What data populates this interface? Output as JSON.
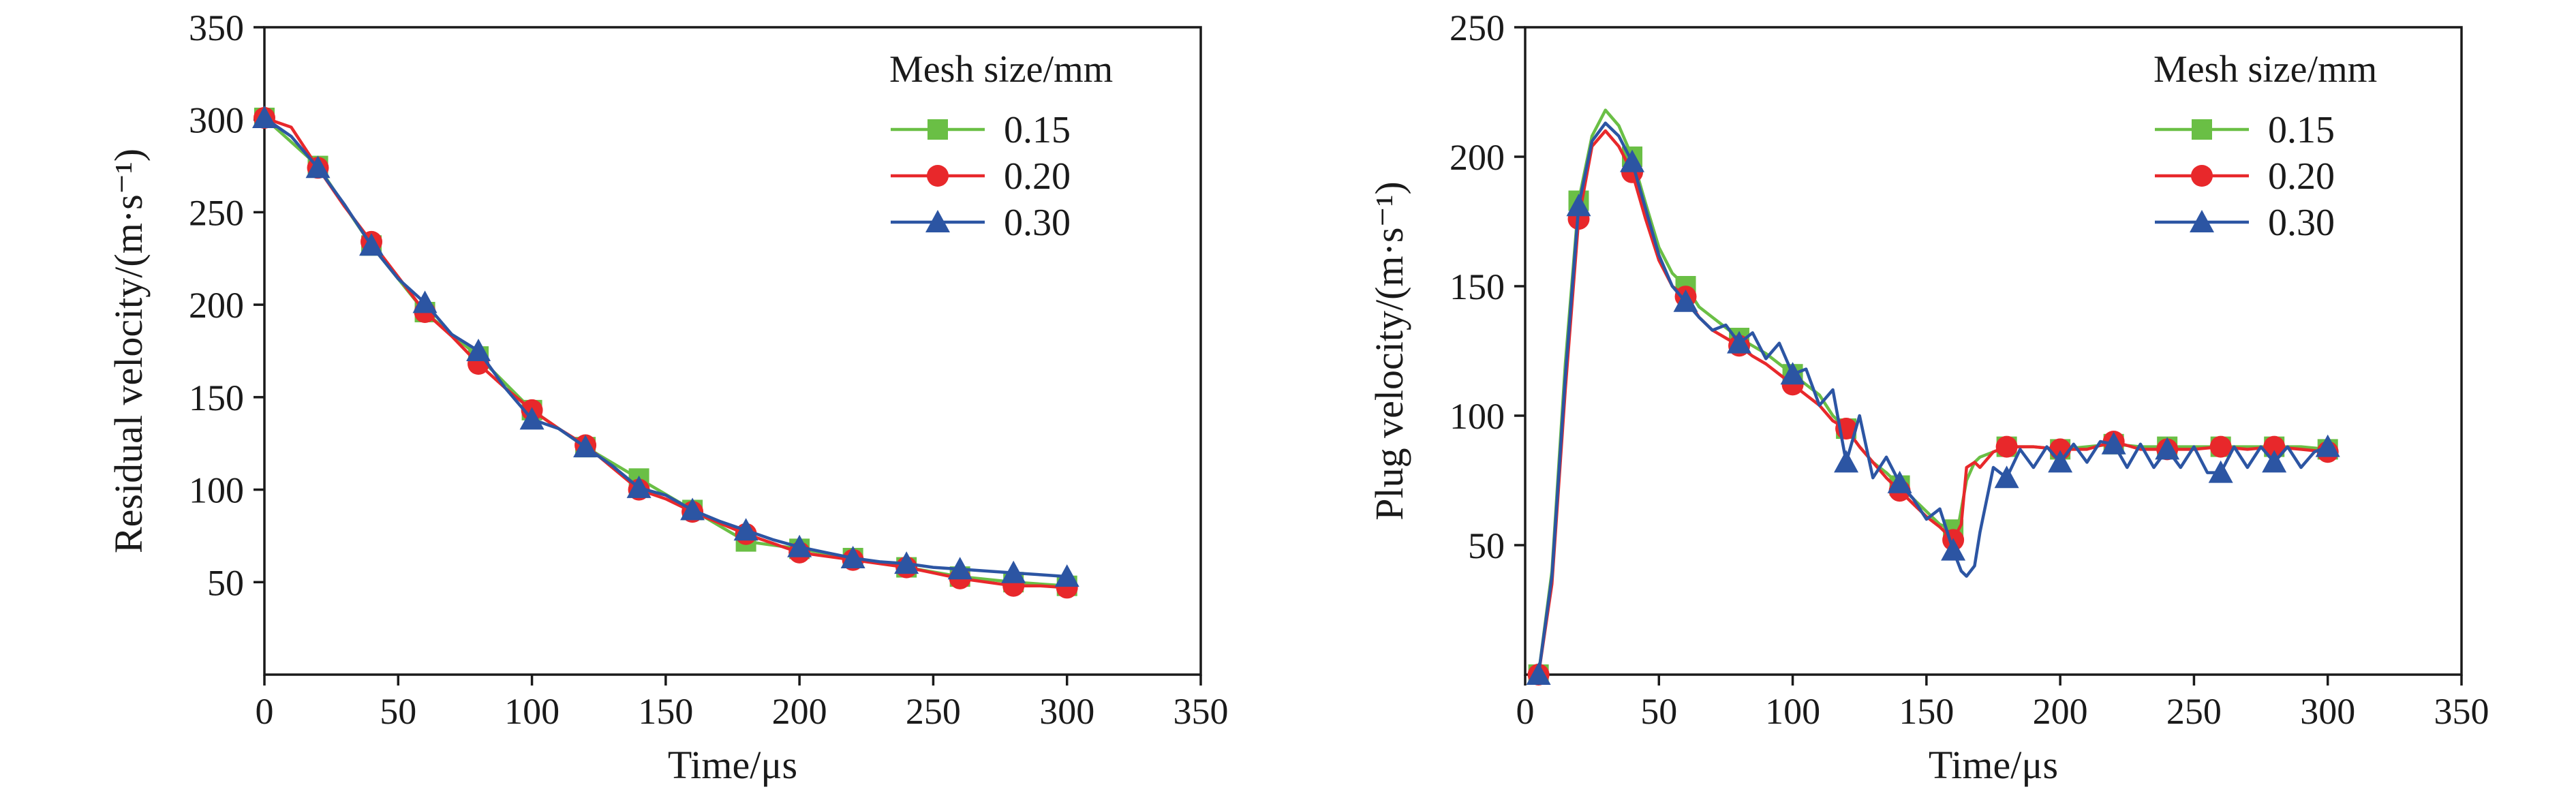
{
  "chart_data": [
    {
      "type": "line",
      "ylabel": "Residual velocity/(m·s⁻¹)",
      "xlabel": "Time/μs",
      "xlim": [
        0,
        350
      ],
      "ylim": [
        0,
        350
      ],
      "x_ticks": [
        0,
        50,
        100,
        150,
        200,
        250,
        300,
        350
      ],
      "y_ticks": [
        50,
        100,
        150,
        200,
        250,
        300,
        350
      ],
      "grid": false,
      "legend": {
        "title": "Mesh size/mm",
        "placement": "top-right"
      },
      "series": [
        {
          "name": "0.15",
          "color": "#6abf45",
          "marker": "square",
          "x": [
            0,
            20,
            40,
            60,
            80,
            100,
            120,
            140,
            160,
            180,
            200,
            220,
            240,
            260,
            280,
            300
          ],
          "y": [
            301,
            275,
            232,
            196,
            172,
            143,
            123,
            106,
            89,
            72,
            68,
            63,
            58,
            53,
            50,
            48
          ],
          "marker_x": [
            0,
            20,
            40,
            60,
            80,
            100,
            120,
            140,
            160,
            180,
            200,
            220,
            240,
            260,
            280,
            300
          ]
        },
        {
          "name": "0.20",
          "color": "#e8282b",
          "marker": "circle",
          "x": [
            0,
            10,
            20,
            30,
            40,
            50,
            60,
            70,
            80,
            90,
            100,
            110,
            120,
            130,
            140,
            150,
            160,
            170,
            180,
            190,
            200,
            210,
            220,
            230,
            240,
            250,
            260,
            270,
            280,
            290,
            300
          ],
          "y": [
            301,
            296,
            274,
            253,
            234,
            215,
            196,
            183,
            168,
            155,
            143,
            133,
            124,
            112,
            100,
            95,
            88,
            82,
            76,
            71,
            66,
            64,
            62,
            60,
            58,
            55,
            52,
            50,
            48,
            48,
            47
          ],
          "marker_x": [
            0,
            20,
            40,
            60,
            80,
            100,
            120,
            140,
            160,
            180,
            200,
            220,
            240,
            260,
            280,
            300
          ]
        },
        {
          "name": "0.30",
          "color": "#2c55a3",
          "marker": "triangle",
          "x": [
            0,
            10,
            20,
            30,
            40,
            50,
            60,
            70,
            80,
            90,
            100,
            110,
            120,
            130,
            140,
            150,
            160,
            170,
            180,
            190,
            200,
            210,
            220,
            230,
            240,
            250,
            260,
            270,
            280,
            290,
            300
          ],
          "y": [
            301,
            291,
            274,
            254,
            232,
            214,
            201,
            184,
            175,
            155,
            138,
            133,
            123,
            113,
            101,
            97,
            89,
            83,
            78,
            73,
            69,
            66,
            63,
            61,
            60,
            58,
            57,
            56,
            55,
            54,
            53
          ],
          "marker_x": [
            0,
            20,
            40,
            60,
            80,
            100,
            120,
            140,
            160,
            180,
            200,
            220,
            240,
            260,
            280,
            300
          ]
        }
      ]
    },
    {
      "type": "line",
      "ylabel": "Plug velocity/(m·s⁻¹)",
      "xlabel": "Time/μs",
      "xlim": [
        0,
        350
      ],
      "ylim": [
        0,
        250
      ],
      "x_ticks": [
        0,
        50,
        100,
        150,
        200,
        250,
        300,
        350
      ],
      "y_ticks": [
        50,
        100,
        150,
        200,
        250
      ],
      "grid": false,
      "legend": {
        "title": "Mesh size/mm",
        "placement": "top-right"
      },
      "series": [
        {
          "name": "0.15",
          "color": "#6abf45",
          "marker": "square",
          "x": [
            5,
            10,
            15,
            20,
            25,
            30,
            35,
            40,
            45,
            50,
            55,
            60,
            65,
            70,
            75,
            80,
            85,
            90,
            95,
            100,
            105,
            110,
            115,
            120,
            125,
            130,
            135,
            140,
            145,
            150,
            155,
            160,
            162,
            165,
            168,
            170,
            175,
            180,
            190,
            200,
            210,
            220,
            230,
            240,
            250,
            260,
            270,
            280,
            290,
            300
          ],
          "y": [
            0,
            40,
            120,
            183,
            208,
            218,
            212,
            200,
            182,
            165,
            155,
            150,
            142,
            138,
            134,
            130,
            127,
            124,
            120,
            116,
            112,
            108,
            100,
            95,
            88,
            82,
            78,
            73,
            68,
            63,
            58,
            56,
            58,
            75,
            82,
            84,
            86,
            88,
            88,
            87,
            88,
            89,
            88,
            88,
            88,
            88,
            88,
            88,
            88,
            87
          ],
          "marker_x": [
            5,
            20,
            40,
            60,
            80,
            100,
            120,
            140,
            160,
            180,
            200,
            220,
            240,
            260,
            280,
            300
          ]
        },
        {
          "name": "0.20",
          "color": "#e8282b",
          "marker": "circle",
          "x": [
            5,
            10,
            15,
            20,
            25,
            30,
            35,
            40,
            45,
            50,
            55,
            60,
            65,
            70,
            75,
            80,
            85,
            90,
            95,
            100,
            105,
            110,
            115,
            120,
            125,
            130,
            135,
            140,
            145,
            150,
            155,
            160,
            163,
            165,
            168,
            170,
            175,
            180,
            190,
            200,
            210,
            220,
            230,
            240,
            250,
            260,
            270,
            280,
            290,
            300
          ],
          "y": [
            0,
            35,
            110,
            176,
            204,
            210,
            204,
            194,
            176,
            160,
            150,
            146,
            138,
            133,
            130,
            127,
            123,
            120,
            116,
            112,
            108,
            104,
            98,
            95,
            88,
            82,
            76,
            71,
            66,
            61,
            57,
            52,
            58,
            80,
            82,
            80,
            86,
            88,
            88,
            87,
            87,
            90,
            87,
            87,
            87,
            88,
            87,
            88,
            87,
            86
          ],
          "marker_x": [
            5,
            20,
            40,
            60,
            80,
            100,
            120,
            140,
            160,
            180,
            200,
            220,
            240,
            260,
            280,
            300
          ]
        },
        {
          "name": "0.30",
          "color": "#2c55a3",
          "marker": "triangle",
          "x": [
            5,
            10,
            15,
            20,
            25,
            30,
            35,
            40,
            45,
            50,
            55,
            60,
            65,
            70,
            75,
            80,
            85,
            90,
            95,
            100,
            105,
            110,
            115,
            120,
            125,
            130,
            135,
            140,
            145,
            150,
            155,
            160,
            163,
            165,
            168,
            170,
            175,
            180,
            185,
            190,
            195,
            200,
            205,
            210,
            215,
            220,
            225,
            230,
            235,
            240,
            245,
            250,
            255,
            260,
            265,
            270,
            275,
            280,
            285,
            290,
            295,
            300
          ],
          "y": [
            0,
            38,
            115,
            181,
            206,
            213,
            208,
            198,
            180,
            162,
            150,
            144,
            138,
            133,
            135,
            128,
            132,
            122,
            128,
            116,
            118,
            104,
            110,
            82,
            100,
            76,
            84,
            74,
            68,
            60,
            64,
            48,
            40,
            38,
            42,
            55,
            80,
            76,
            87,
            80,
            88,
            82,
            89,
            82,
            90,
            89,
            80,
            89,
            80,
            87,
            80,
            88,
            78,
            78,
            88,
            80,
            88,
            82,
            88,
            80,
            86,
            88
          ],
          "marker_x": [
            5,
            20,
            40,
            60,
            80,
            100,
            120,
            140,
            160,
            180,
            200,
            220,
            240,
            260,
            280,
            300
          ]
        }
      ]
    }
  ]
}
